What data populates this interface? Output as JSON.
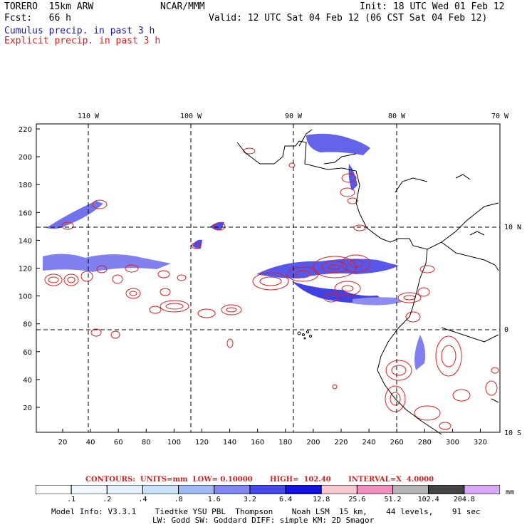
{
  "header": {
    "model_name": "TORERO  15km ARW",
    "org": "NCAR/MMM",
    "init_label": "Init: 18 UTC Wed 01 Feb 12",
    "fcst_label": "Fcst:   66 h",
    "valid_label": "Valid: 12 UTC Sat 04 Feb 12 (06 CST Sat 04 Feb 12)",
    "field1": "Cumulus precip. in past 3 h",
    "field2": "Explicit precip. in past 3 h"
  },
  "map": {
    "top_lon_labels": [
      "110 W",
      "100 W",
      "90 W",
      "80 W",
      "70 W"
    ],
    "right_lat_labels": [
      "10 N",
      "0",
      "10 S"
    ],
    "left_grid_labels": [
      "220",
      "200",
      "180",
      "160",
      "140",
      "120",
      "100",
      "80",
      "60",
      "40",
      "20"
    ],
    "bottom_grid_labels": [
      "20",
      "40",
      "60",
      "80",
      "100",
      "120",
      "140",
      "160",
      "180",
      "200",
      "220",
      "240",
      "260",
      "280",
      "300",
      "320"
    ],
    "colors": {
      "cumulus": "#1f1fe0",
      "explicit": "#e01e1e",
      "coast": "#000000"
    }
  },
  "legend": {
    "contours_text": "CONTOURS:  UNITS=mm  LOW= 0.10000       HIGH=  102.40       INTERVAL=X  4.0000",
    "bins": [
      {
        "label": ".1",
        "color": "#ffffff"
      },
      {
        "label": ".2",
        "color": "#f2f8ff"
      },
      {
        "label": ".4",
        "color": "#e4f2fc"
      },
      {
        "label": ".8",
        "color": "#c8e0f8"
      },
      {
        "label": "1.6",
        "color": "#a0b8f4"
      },
      {
        "label": "3.2",
        "color": "#7f86f0"
      },
      {
        "label": "6.4",
        "color": "#4848ea"
      },
      {
        "label": "12.8",
        "color": "#1414de"
      },
      {
        "label": "25.6",
        "color": "#f8c8d0"
      },
      {
        "label": "51.2",
        "color": "#f090c0"
      },
      {
        "label": "102.4",
        "color": "#b4b4b4"
      },
      {
        "label": "204.8",
        "color": "#444444"
      },
      {
        "label": "",
        "color": "#d8a8f8"
      }
    ],
    "units": "mm"
  },
  "model_info": {
    "line1": "Model Info: V3.3.1    Tiedtke YSU PBL  Thompson    Noah LSM  15 km,    44 levels,    91 sec",
    "line2": "LW: Godd SW: Goddard DIFF: simple KM: 2D Smagor"
  }
}
